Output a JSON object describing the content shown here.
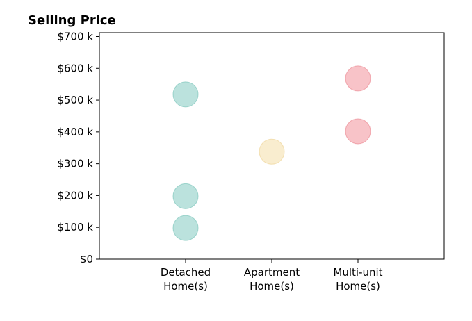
{
  "chart_data": {
    "type": "scatter",
    "title": "Selling Price",
    "xlabel": "",
    "ylabel": "",
    "categories": [
      [
        "Detached",
        "Home(s)"
      ],
      [
        "Apartment",
        "Home(s)"
      ],
      [
        "Multi-unit",
        "Home(s)"
      ]
    ],
    "y_ticks": [
      0,
      100,
      200,
      300,
      400,
      500,
      600,
      700
    ],
    "y_tick_labels": [
      "$0",
      "$100 k",
      "$200 k",
      "$300 k",
      "$400 k",
      "$500 k",
      "$600 k",
      "$700 k"
    ],
    "ylim": [
      0,
      712
    ],
    "xlim": [
      -1,
      3
    ],
    "grid": false,
    "legend": "none",
    "series": [
      {
        "category_index": 0,
        "color": "#97d3cb",
        "edge": "#6fbfb4",
        "values": [
          518,
          198,
          98
        ]
      },
      {
        "category_index": 1,
        "color": "#f6e3b5",
        "edge": "#ecd08e",
        "values": [
          338
        ]
      },
      {
        "category_index": 2,
        "color": "#f5a3aa",
        "edge": "#ea7f89",
        "values": [
          568,
          402
        ]
      }
    ]
  }
}
